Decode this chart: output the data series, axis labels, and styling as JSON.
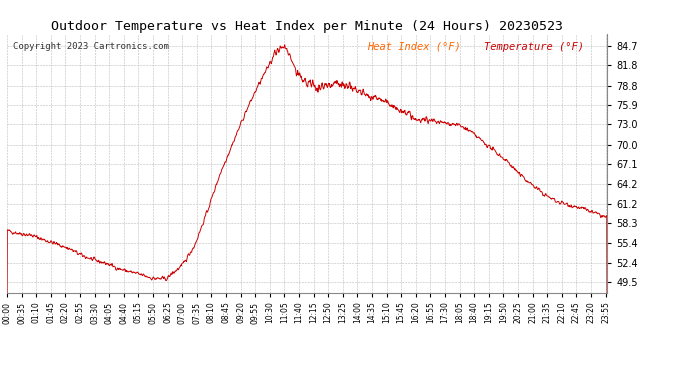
{
  "title": "Outdoor Temperature vs Heat Index per Minute (24 Hours) 20230523",
  "copyright": "Copyright 2023 Cartronics.com",
  "legend_heat": "Heat Index (°F)",
  "legend_temp": "Temperature (°F)",
  "line_color": "#cc0000",
  "background_color": "#ffffff",
  "grid_color": "#bbbbbb",
  "yticks": [
    49.5,
    52.4,
    55.4,
    58.3,
    61.2,
    64.2,
    67.1,
    70.0,
    73.0,
    75.9,
    78.8,
    81.8,
    84.7
  ],
  "ylim": [
    48.0,
    86.5
  ],
  "title_fontsize": 9.5,
  "copyright_fontsize": 6.5,
  "legend_fontsize": 7.5,
  "tick_fontsize": 7,
  "xtick_fontsize": 5.5
}
